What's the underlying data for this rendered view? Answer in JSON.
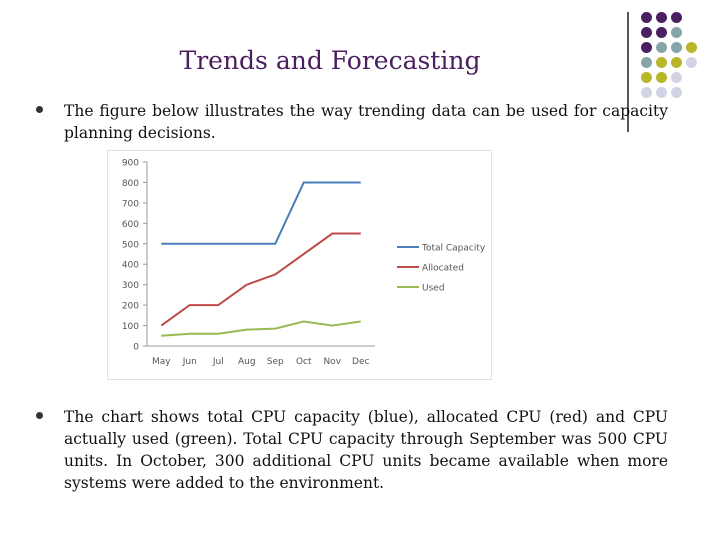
{
  "slide": {
    "title": "Trends and Forecasting",
    "bullets": [
      "The figure below illustrates the way trending data can be used for capacity planning decisions.",
      "The chart shows total CPU capacity (blue), allocated CPU (red) and CPU actually used (green). Total CPU capacity through September was 500 CPU units. In October, 300 additional CPU units became available when more systems were added to the environment."
    ]
  },
  "decor": {
    "colors": {
      "purple": "#4a2060",
      "teal": "#86a5a8",
      "olive": "#b8b72a",
      "lavender": "#d3d3e6"
    },
    "dot_grid": [
      [
        "purple",
        "purple",
        "purple",
        null
      ],
      [
        "purple",
        "purple",
        "teal",
        null
      ],
      [
        "purple",
        "teal",
        "teal",
        "olive"
      ],
      [
        "teal",
        "olive",
        "olive",
        "lavender"
      ],
      [
        "olive",
        "olive",
        "lavender",
        null
      ],
      [
        "lavender",
        "lavender",
        "lavender",
        null
      ]
    ]
  },
  "chart_data": {
    "type": "line",
    "title": "",
    "xlabel": "",
    "ylabel": "",
    "categories": [
      "May",
      "Jun",
      "Jul",
      "Aug",
      "Sep",
      "Oct",
      "Nov",
      "Dec"
    ],
    "ylim": [
      0,
      900
    ],
    "yticks": [
      0,
      100,
      200,
      300,
      400,
      500,
      600,
      700,
      800,
      900
    ],
    "grid": false,
    "legend": "right",
    "series": [
      {
        "name": "Total Capacity",
        "color": "#4a7ebb",
        "values": [
          500,
          500,
          500,
          500,
          500,
          800,
          800,
          800
        ]
      },
      {
        "name": "Allocated",
        "color": "#be4b48",
        "values": [
          100,
          200,
          200,
          300,
          350,
          450,
          550,
          550
        ]
      },
      {
        "name": "Used",
        "color": "#98b954",
        "values": [
          50,
          60,
          60,
          80,
          85,
          120,
          100,
          120
        ]
      }
    ]
  }
}
